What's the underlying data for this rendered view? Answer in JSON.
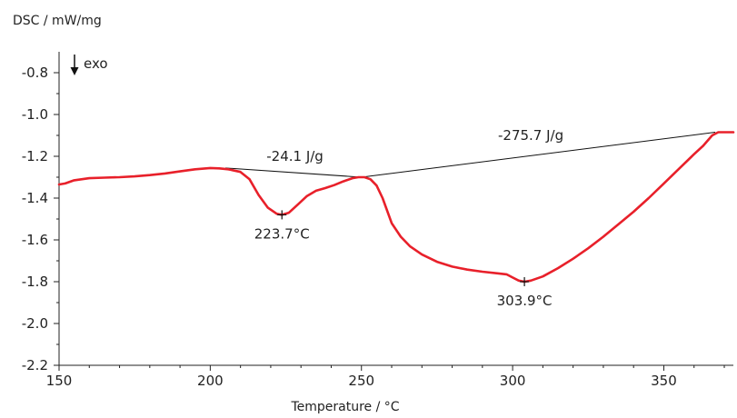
{
  "chart_data": {
    "type": "line",
    "ylabel": "DSC / mW/mg",
    "xlabel": "Temperature / °C",
    "xlim": [
      150,
      373
    ],
    "ylim": [
      -2.2,
      -0.7
    ],
    "xticks": [
      150,
      200,
      250,
      300,
      350
    ],
    "yticks": [
      -0.8,
      -1.0,
      -1.2,
      -1.4,
      -1.6,
      -1.8,
      -2.0,
      -2.2
    ],
    "ytick_labels": [
      "-0.8",
      "-1.0",
      "-1.2",
      "-1.4",
      "-1.6",
      "-1.8",
      "-2.0",
      "-2.2"
    ],
    "xtick_labels": [
      "150",
      "200",
      "250",
      "300",
      "350"
    ],
    "grid": false,
    "exo_label": "exo",
    "series": [
      {
        "color": "#e8202a",
        "x": [
          150,
          152,
          155,
          160,
          165,
          170,
          175,
          180,
          185,
          190,
          195,
          200,
          203,
          206,
          210,
          213,
          216,
          219,
          222,
          223.7,
          226,
          229,
          232,
          235,
          238,
          241,
          244,
          247,
          249,
          251,
          253,
          255,
          257,
          260,
          263,
          266,
          270,
          275,
          280,
          285,
          290,
          295,
          298,
          300,
          302,
          303.9,
          306,
          310,
          315,
          320,
          325,
          330,
          335,
          340,
          345,
          350,
          355,
          360,
          363,
          366,
          368,
          370,
          373
        ],
        "y": [
          -1.335,
          -1.33,
          -1.315,
          -1.305,
          -1.302,
          -1.3,
          -1.296,
          -1.29,
          -1.282,
          -1.272,
          -1.262,
          -1.256,
          -1.258,
          -1.262,
          -1.275,
          -1.31,
          -1.385,
          -1.445,
          -1.475,
          -1.48,
          -1.47,
          -1.43,
          -1.39,
          -1.365,
          -1.352,
          -1.338,
          -1.32,
          -1.305,
          -1.3,
          -1.3,
          -1.31,
          -1.34,
          -1.4,
          -1.52,
          -1.585,
          -1.63,
          -1.67,
          -1.705,
          -1.728,
          -1.742,
          -1.752,
          -1.76,
          -1.765,
          -1.78,
          -1.795,
          -1.8,
          -1.795,
          -1.775,
          -1.735,
          -1.69,
          -1.64,
          -1.585,
          -1.525,
          -1.465,
          -1.4,
          -1.33,
          -1.26,
          -1.19,
          -1.15,
          -1.1,
          -1.085,
          -1.085,
          -1.085
        ]
      }
    ],
    "baselines": [
      {
        "x": [
          205,
          250
        ],
        "y": [
          -1.256,
          -1.3
        ]
      },
      {
        "x": [
          250,
          367
        ],
        "y": [
          -1.3,
          -1.085
        ]
      }
    ],
    "annotations": [
      {
        "text": "-24.1 J/g",
        "x": 228,
        "y": -1.2
      },
      {
        "text": "-275.7 J/g",
        "x": 306,
        "y": -1.1
      },
      {
        "text": "223.7°C",
        "x": 223.7,
        "y": -1.48
      },
      {
        "text": "303.9°C",
        "x": 303.9,
        "y": -1.8
      }
    ],
    "peak_markers": [
      {
        "x": 223.7,
        "y": -1.48
      },
      {
        "x": 303.9,
        "y": -1.8
      }
    ]
  }
}
